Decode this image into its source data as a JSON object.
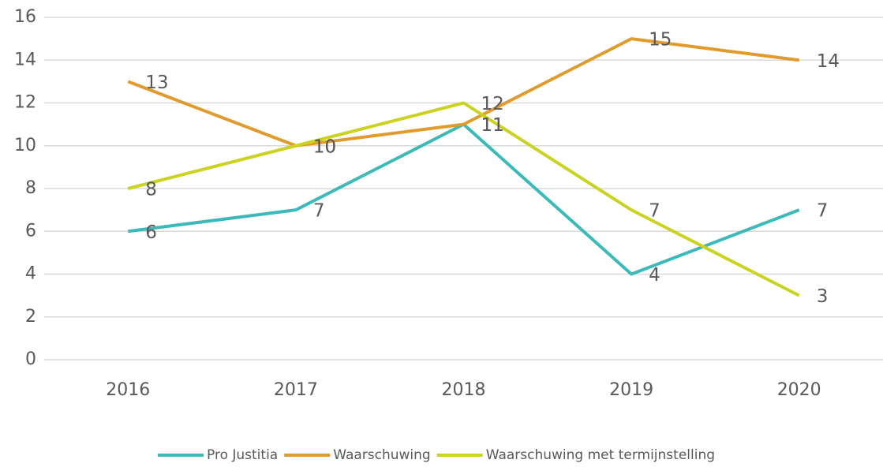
{
  "chart_data": {
    "type": "line",
    "categories": [
      "2016",
      "2017",
      "2018",
      "2019",
      "2020"
    ],
    "series": [
      {
        "name": "Pro Justitia",
        "color": "#3cb9b9",
        "values": [
          6,
          7,
          11,
          4,
          7
        ]
      },
      {
        "name": "Waarschuwing",
        "color": "#e19a2c",
        "values": [
          13,
          10,
          11,
          15,
          14
        ]
      },
      {
        "name": "Waarschuwing met termijnstelling",
        "color": "#c9d320",
        "values": [
          8,
          10,
          12,
          7,
          3
        ]
      }
    ],
    "ylim": [
      0,
      16
    ],
    "yticks": [
      0,
      2,
      4,
      6,
      8,
      10,
      12,
      14,
      16
    ],
    "grid": true,
    "legend": "bottom"
  }
}
